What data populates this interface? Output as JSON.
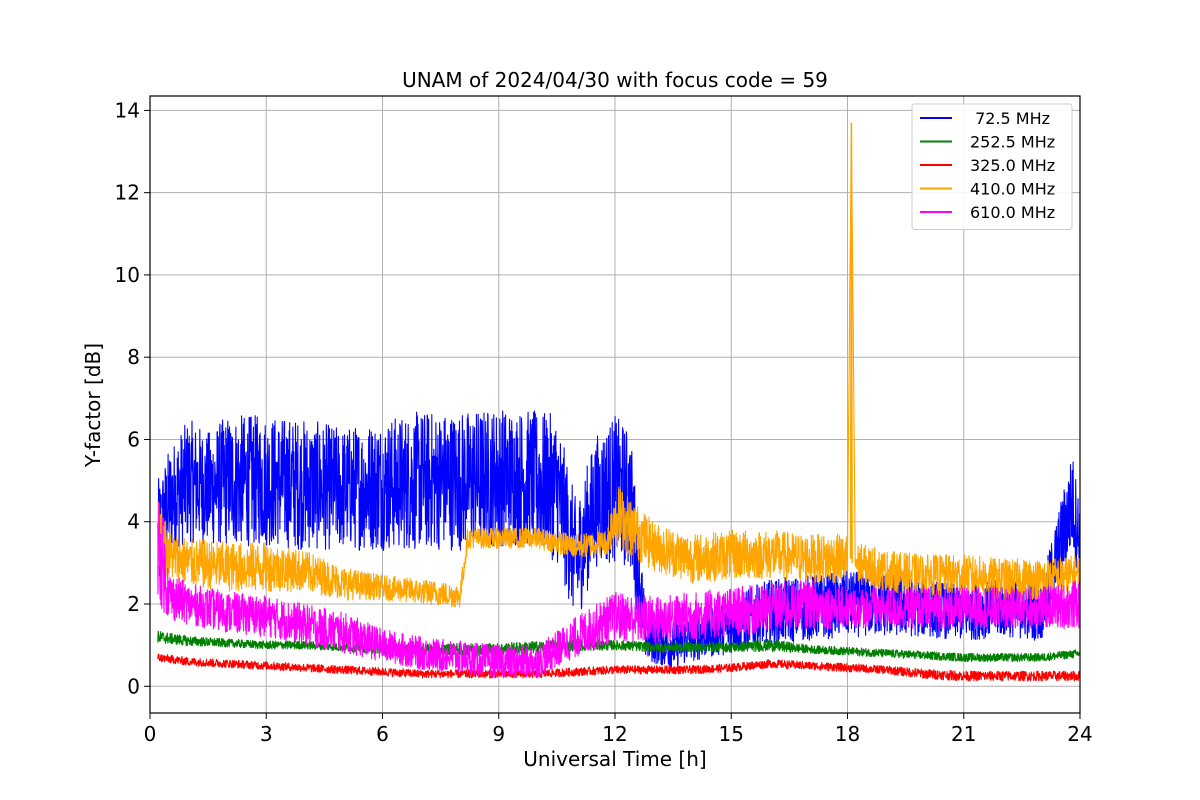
{
  "chart_data": {
    "type": "line",
    "title": "UNAM of 2024/04/30 with focus code = 59",
    "xlabel": "Universal Time [h]",
    "ylabel": "Y-factor [dB]",
    "xlim": [
      0,
      24
    ],
    "ylim": [
      -0.65,
      14.35
    ],
    "xticks": [
      0,
      3,
      6,
      9,
      12,
      15,
      18,
      21,
      24
    ],
    "yticks": [
      0,
      2,
      4,
      6,
      8,
      10,
      12,
      14
    ],
    "grid": true,
    "legend_position": "top-right",
    "series": [
      {
        "name": " 72.5 MHz",
        "color": "#0000ff",
        "x": [
          0.2,
          0.5,
          1,
          1.5,
          2,
          3,
          4,
          5,
          6,
          7,
          8,
          9,
          10,
          10.5,
          11,
          11.5,
          12,
          12.4,
          12.8,
          13.5,
          14,
          15,
          16,
          17,
          18,
          19,
          20,
          21,
          22,
          23,
          23.8,
          24
        ],
        "center": [
          3.5,
          4.5,
          5.0,
          4.8,
          5.0,
          5.0,
          4.9,
          4.8,
          4.9,
          5.0,
          5.0,
          5.1,
          5.0,
          4.8,
          3.0,
          4.5,
          4.8,
          4.5,
          1.2,
          1.0,
          1.2,
          1.5,
          1.8,
          1.9,
          2.0,
          2.0,
          1.9,
          1.8,
          1.9,
          1.8,
          4.5,
          3.5
        ],
        "spread": [
          1.5,
          1.3,
          1.5,
          1.4,
          1.6,
          1.6,
          1.6,
          1.5,
          1.6,
          1.7,
          1.7,
          1.7,
          1.7,
          1.8,
          1.5,
          1.6,
          1.8,
          1.7,
          0.6,
          0.6,
          0.6,
          0.7,
          0.8,
          0.8,
          0.8,
          0.8,
          0.7,
          0.7,
          0.7,
          0.7,
          1.2,
          1.0
        ]
      },
      {
        "name": "252.5 MHz",
        "color": "#008000",
        "x": [
          0.2,
          1,
          2,
          3,
          4,
          5,
          6,
          7,
          8,
          9,
          10,
          11,
          12,
          13,
          14,
          15,
          16,
          17,
          18,
          19,
          20,
          21,
          22,
          23,
          24
        ],
        "center": [
          1.2,
          1.1,
          1.05,
          1.0,
          1.0,
          0.95,
          0.9,
          0.9,
          0.9,
          0.9,
          0.95,
          1.0,
          1.0,
          0.95,
          0.95,
          0.95,
          1.0,
          0.9,
          0.85,
          0.8,
          0.75,
          0.7,
          0.7,
          0.7,
          0.8
        ],
        "spread": [
          0.15,
          0.12,
          0.1,
          0.1,
          0.1,
          0.1,
          0.12,
          0.12,
          0.15,
          0.15,
          0.15,
          0.15,
          0.12,
          0.12,
          0.12,
          0.12,
          0.15,
          0.1,
          0.1,
          0.1,
          0.1,
          0.1,
          0.1,
          0.1,
          0.1
        ]
      },
      {
        "name": "325.0 MHz",
        "color": "#ff0000",
        "x": [
          0.2,
          1,
          2,
          3,
          4,
          5,
          6,
          7,
          8,
          9,
          10,
          11,
          12,
          13,
          14,
          15,
          16,
          17,
          18,
          19,
          20,
          21,
          22,
          23,
          24
        ],
        "center": [
          0.7,
          0.6,
          0.55,
          0.5,
          0.45,
          0.4,
          0.35,
          0.3,
          0.3,
          0.3,
          0.3,
          0.35,
          0.4,
          0.4,
          0.4,
          0.45,
          0.55,
          0.5,
          0.45,
          0.4,
          0.3,
          0.25,
          0.25,
          0.25,
          0.25
        ],
        "spread": [
          0.1,
          0.1,
          0.1,
          0.1,
          0.1,
          0.1,
          0.1,
          0.1,
          0.1,
          0.1,
          0.1,
          0.1,
          0.1,
          0.1,
          0.1,
          0.1,
          0.1,
          0.1,
          0.1,
          0.1,
          0.12,
          0.12,
          0.12,
          0.12,
          0.12
        ]
      },
      {
        "name": "410.0 MHz",
        "color": "#ffa500",
        "x": [
          0.2,
          0.5,
          1,
          2,
          3,
          4,
          5,
          6,
          7,
          8,
          8.2,
          9,
          10,
          11,
          11.8,
          12,
          12.5,
          13,
          14,
          15,
          16,
          17,
          18,
          18.1,
          18.2,
          19,
          20,
          21,
          22,
          23,
          24
        ],
        "center": [
          3.8,
          3.2,
          3.0,
          2.9,
          2.9,
          2.8,
          2.5,
          2.4,
          2.3,
          2.2,
          3.6,
          3.6,
          3.6,
          3.4,
          3.5,
          4.2,
          3.8,
          3.4,
          3.1,
          3.2,
          3.2,
          3.1,
          3.1,
          13.7,
          3.0,
          2.8,
          2.7,
          2.7,
          2.6,
          2.6,
          2.7
        ],
        "spread": [
          1.0,
          0.6,
          0.6,
          0.6,
          0.6,
          0.5,
          0.4,
          0.3,
          0.3,
          0.3,
          0.25,
          0.25,
          0.25,
          0.3,
          0.3,
          0.8,
          0.7,
          0.6,
          0.6,
          0.6,
          0.6,
          0.6,
          0.6,
          0.0,
          0.5,
          0.5,
          0.5,
          0.5,
          0.5,
          0.5,
          0.5
        ]
      },
      {
        "name": "610.0 MHz",
        "color": "#ff00ff",
        "x": [
          0.2,
          0.5,
          1,
          2,
          3,
          4,
          5,
          6,
          7,
          8,
          9,
          10,
          11,
          12,
          13,
          14,
          15,
          16,
          17,
          18,
          19,
          20,
          21,
          22,
          23,
          24
        ],
        "center": [
          3.5,
          2.2,
          2.0,
          1.8,
          1.7,
          1.5,
          1.3,
          1.0,
          0.8,
          0.7,
          0.6,
          0.6,
          1.2,
          1.7,
          1.6,
          1.7,
          1.8,
          1.9,
          2.0,
          1.9,
          1.9,
          1.9,
          1.9,
          1.9,
          1.9,
          2.0
        ],
        "spread": [
          1.5,
          0.6,
          0.5,
          0.5,
          0.5,
          0.5,
          0.5,
          0.4,
          0.4,
          0.4,
          0.4,
          0.4,
          0.5,
          0.6,
          0.6,
          0.6,
          0.6,
          0.6,
          0.6,
          0.5,
          0.5,
          0.5,
          0.5,
          0.5,
          0.5,
          0.6
        ]
      }
    ]
  }
}
